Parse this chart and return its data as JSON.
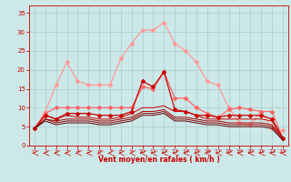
{
  "x": [
    0,
    1,
    2,
    3,
    4,
    5,
    6,
    7,
    8,
    9,
    10,
    11,
    12,
    13,
    14,
    15,
    16,
    17,
    18,
    19,
    20,
    21,
    22,
    23
  ],
  "series": [
    {
      "color": "#ff9999",
      "linewidth": 0.9,
      "marker": "D",
      "markersize": 2.0,
      "values": [
        4.5,
        9,
        16,
        22,
        17,
        16,
        16,
        16,
        23,
        27,
        30.5,
        30.5,
        32.5,
        27,
        25,
        22,
        17,
        16,
        10,
        6,
        5.5,
        9,
        4.5,
        4
      ]
    },
    {
      "color": "#ff6666",
      "linewidth": 0.9,
      "marker": "D",
      "markersize": 2.0,
      "values": [
        4.5,
        8.5,
        10,
        10,
        10,
        10,
        10,
        10,
        10,
        10,
        15.5,
        15,
        19.5,
        12.5,
        12.5,
        10,
        8.5,
        7.5,
        9.5,
        10,
        9.5,
        9,
        9,
        2
      ]
    },
    {
      "color": "#cc0000",
      "linewidth": 0.9,
      "marker": "D",
      "markersize": 2.0,
      "values": [
        4.5,
        8,
        7,
        8.5,
        8.5,
        8.5,
        8,
        8,
        8,
        9,
        17,
        15.5,
        19.5,
        9.5,
        9,
        8,
        8,
        7.5,
        8,
        8,
        8,
        8,
        7,
        2
      ]
    },
    {
      "color": "#cc0000",
      "linewidth": 0.7,
      "marker": null,
      "markersize": 0,
      "values": [
        4.5,
        8,
        7,
        8,
        7.5,
        7.5,
        7,
        7,
        7.5,
        8.5,
        10,
        10,
        10.5,
        9,
        9,
        8,
        7,
        7,
        7,
        7,
        7,
        7,
        6.5,
        2
      ]
    },
    {
      "color": "#aa0000",
      "linewidth": 0.7,
      "marker": null,
      "markersize": 0,
      "values": [
        4.5,
        7,
        6.5,
        7,
        7,
        7,
        6.5,
        6.5,
        7,
        7.5,
        9,
        9,
        9.5,
        7.5,
        7.5,
        7,
        6.5,
        6.5,
        6,
        6,
        6,
        6,
        5.5,
        2
      ]
    },
    {
      "color": "#880000",
      "linewidth": 0.7,
      "marker": null,
      "markersize": 0,
      "values": [
        4.5,
        7,
        6,
        6.5,
        6.5,
        6.5,
        6,
        6,
        6.5,
        7,
        8.5,
        8.5,
        9,
        7,
        7,
        6.5,
        6,
        6,
        5.5,
        5.5,
        5.5,
        5.5,
        5,
        1.5
      ]
    },
    {
      "color": "#660000",
      "linewidth": 0.7,
      "marker": null,
      "markersize": 0,
      "values": [
        4.5,
        6.5,
        5.5,
        6,
        6,
        6,
        5.5,
        5.5,
        6,
        6.5,
        8,
        8,
        8.5,
        6.5,
        6.5,
        6,
        5.5,
        5.5,
        5,
        5,
        5,
        5,
        4.5,
        1.5
      ]
    }
  ],
  "background_color": "#cce8e8",
  "grid_color": "#aacccc",
  "line_color": "#cc0000",
  "xlabel": "Vent moyen/en rafales ( km/h )",
  "xlim": [
    -0.5,
    23.5
  ],
  "ylim": [
    0,
    37
  ],
  "yticks": [
    0,
    5,
    10,
    15,
    20,
    25,
    30,
    35
  ],
  "xticks": [
    0,
    1,
    2,
    3,
    4,
    5,
    6,
    7,
    8,
    9,
    10,
    11,
    12,
    13,
    14,
    15,
    16,
    17,
    18,
    19,
    20,
    21,
    22,
    23
  ]
}
